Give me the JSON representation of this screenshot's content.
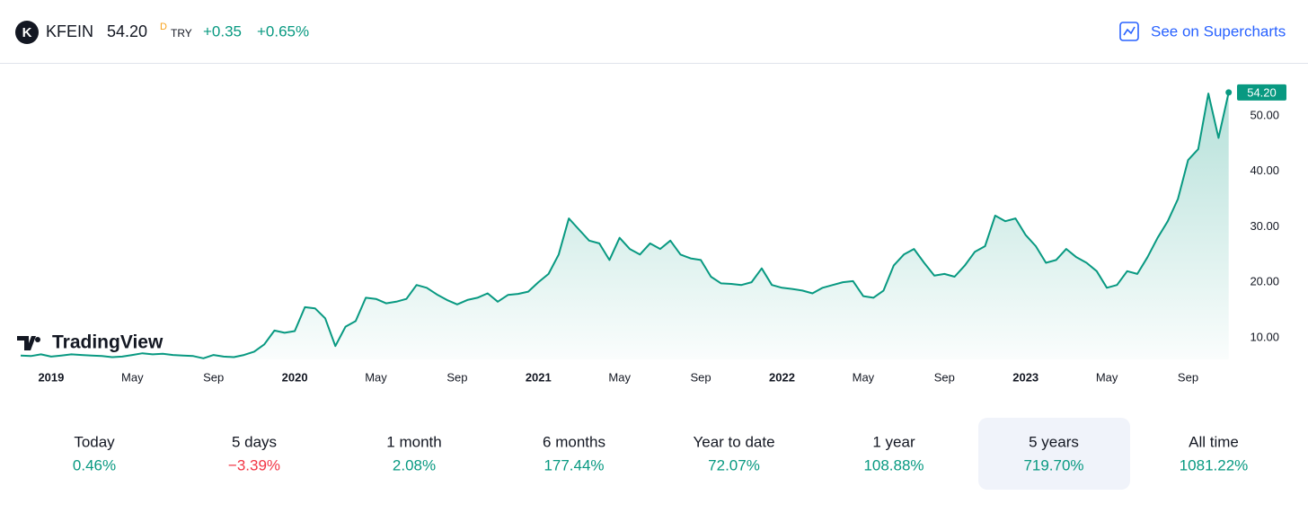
{
  "header": {
    "symbol": "KFEIN",
    "price": "54.20",
    "flag": "D",
    "currency": "TRY",
    "change": "+0.35",
    "change_percent": "+0.65%",
    "link": "See on Supercharts"
  },
  "watermark": "TradingView",
  "chart_data": {
    "type": "area",
    "color": "#089981",
    "categories": [
      null,
      null,
      null,
      "2019",
      null,
      null,
      null,
      null,
      null,
      null,
      null,
      "May",
      null,
      null,
      null,
      null,
      null,
      null,
      null,
      "Sep",
      null,
      null,
      null,
      null,
      null,
      null,
      null,
      "2020",
      null,
      null,
      null,
      null,
      null,
      null,
      null,
      "May",
      null,
      null,
      null,
      null,
      null,
      null,
      null,
      "Sep",
      null,
      null,
      null,
      null,
      null,
      null,
      null,
      "2021",
      null,
      null,
      null,
      null,
      null,
      null,
      null,
      "May",
      null,
      null,
      null,
      null,
      null,
      null,
      null,
      "Sep",
      null,
      null,
      null,
      null,
      null,
      null,
      null,
      "2022",
      null,
      null,
      null,
      null,
      null,
      null,
      null,
      "May",
      null,
      null,
      null,
      null,
      null,
      null,
      null,
      "Sep",
      null,
      null,
      null,
      null,
      null,
      null,
      null,
      "2023",
      null,
      null,
      null,
      null,
      null,
      null,
      null,
      "May",
      null,
      null,
      null,
      null,
      null,
      null,
      null,
      "Sep",
      null,
      null,
      null,
      null
    ],
    "values": [
      6.8,
      6.7,
      7.0,
      6.6,
      6.8,
      7.0,
      6.9,
      6.8,
      6.7,
      6.5,
      6.6,
      6.9,
      7.2,
      7.0,
      7.1,
      6.9,
      6.8,
      6.7,
      6.3,
      6.9,
      6.6,
      6.5,
      6.9,
      7.5,
      8.8,
      11.3,
      10.9,
      11.2,
      15.5,
      15.3,
      13.5,
      8.5,
      12.0,
      13.0,
      17.2,
      17.0,
      16.2,
      16.5,
      17.0,
      19.5,
      19.0,
      17.8,
      16.8,
      16.0,
      16.8,
      17.2,
      18.0,
      16.5,
      17.7,
      17.9,
      18.3,
      20.0,
      21.5,
      25.0,
      31.5,
      29.5,
      27.5,
      27.0,
      24.0,
      28.0,
      26.0,
      25.0,
      27.0,
      26.0,
      27.5,
      25.0,
      24.3,
      24.0,
      21.0,
      19.8,
      19.7,
      19.5,
      20.0,
      22.5,
      19.5,
      19.0,
      18.8,
      18.5,
      18.0,
      19.0,
      19.5,
      20.0,
      20.2,
      17.5,
      17.2,
      18.5,
      23.0,
      25.0,
      26.0,
      23.5,
      21.2,
      21.5,
      21.0,
      23.0,
      25.5,
      26.5,
      32.0,
      31.0,
      31.5,
      28.5,
      26.5,
      23.5,
      24.0,
      26.0,
      24.5,
      23.5,
      22.0,
      19.0,
      19.5,
      22.0,
      21.5,
      24.5,
      28.0,
      31.0,
      35.0,
      42.0,
      44.0,
      54.0,
      46.0,
      54.2
    ],
    "ylim": [
      6.1,
      59.2
    ],
    "yticks": [
      {
        "value": 10,
        "label": "10.00"
      },
      {
        "value": 20,
        "label": "20.00"
      },
      {
        "value": 30,
        "label": "30.00"
      },
      {
        "value": 40,
        "label": "40.00"
      },
      {
        "value": 50,
        "label": "50.00"
      }
    ],
    "bold_categories": [
      "2019",
      "2020",
      "2021",
      "2022",
      "2023"
    ]
  },
  "periods": [
    {
      "label": "Today",
      "value": "0.46%"
    },
    {
      "label": "5 days",
      "value": "−3.39%",
      "negative": true
    },
    {
      "label": "1 month",
      "value": "2.08%"
    },
    {
      "label": "6 months",
      "value": "177.44%"
    },
    {
      "label": "Year to date",
      "value": "72.07%"
    },
    {
      "label": "1 year",
      "value": "108.88%"
    },
    {
      "label": "5 years",
      "value": "719.70%",
      "selected": true
    },
    {
      "label": "All time",
      "value": "1081.22%"
    }
  ]
}
